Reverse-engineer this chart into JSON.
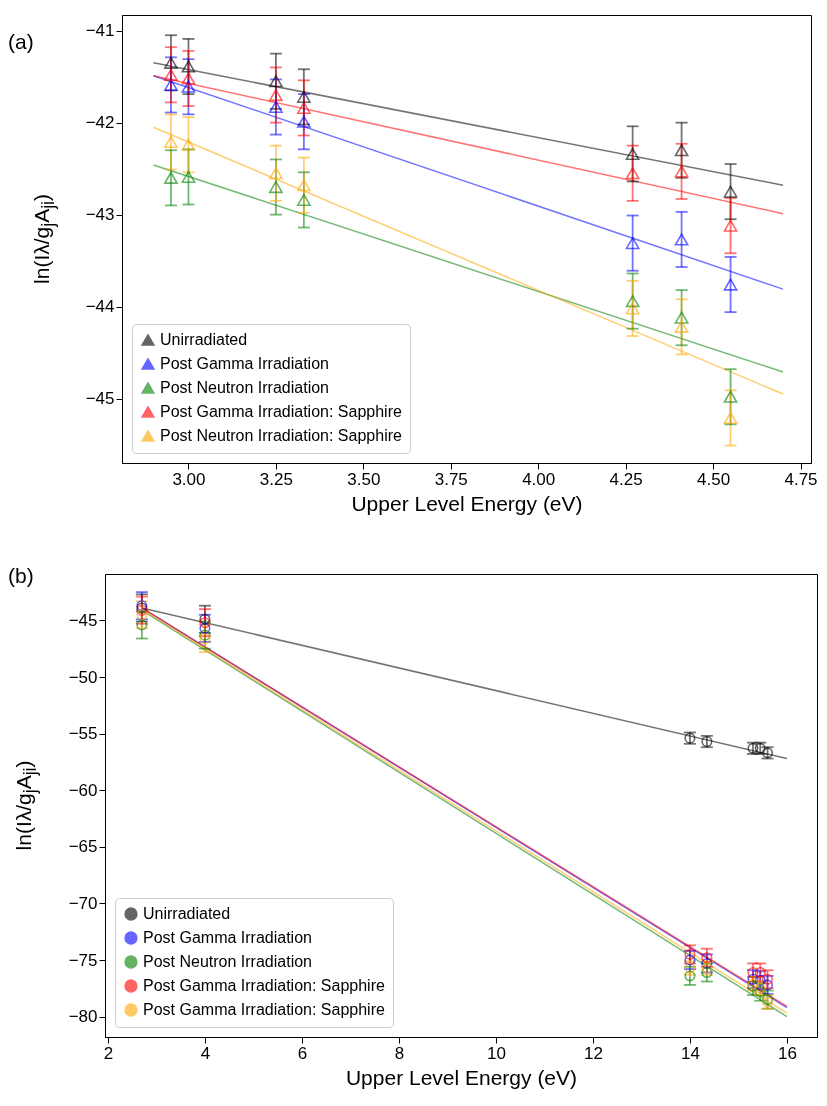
{
  "chart_data": [
    {
      "type": "scatter",
      "title": "(a)",
      "xlabel": "Upper Level Energy (eV)",
      "ylabel": "ln(Iλ/g$_{j}$A$_{ji}$)",
      "marker": "triangle",
      "legend": "bottom left",
      "x": [
        2.95,
        3.0,
        3.25,
        3.33,
        4.27,
        4.41,
        4.55
      ],
      "xlim": [
        2.81,
        4.78
      ],
      "xticks": [
        {
          "value": 3,
          "label": "3.00"
        },
        3.25,
        {
          "value": 3.5,
          "label": "3.50"
        },
        3.75,
        {
          "value": 4,
          "label": "4.00"
        },
        4.25,
        {
          "value": 4.5,
          "label": "4.50"
        },
        4.75
      ],
      "ylim": [
        -45.7,
        -40.83
      ],
      "yticks": [
        -45,
        -44,
        -43,
        -42,
        -41
      ],
      "series": [
        {
          "name": "Unirradiated",
          "color": "#000000",
          "values": [
            -41.35,
            -41.39,
            -41.55,
            -41.72,
            -42.34,
            -42.3,
            -42.75
          ],
          "errors": [
            0.3,
            0.3,
            0.3,
            0.3,
            0.3,
            0.3,
            0.3
          ]
        },
        {
          "name": "Post Gamma Irradiation",
          "color": "#0000ff",
          "values": [
            -41.59,
            -41.61,
            -41.83,
            -41.99,
            -43.31,
            -43.27,
            -43.76
          ],
          "errors": [
            0.3,
            0.3,
            0.3,
            0.3,
            0.3,
            0.3,
            0.3
          ]
        },
        {
          "name": "Post Neutron Irradiation",
          "color": "#008000",
          "values": [
            -42.6,
            -42.59,
            -42.7,
            -42.84,
            -43.94,
            -44.12,
            -44.98
          ],
          "errors": [
            0.3,
            0.3,
            0.3,
            0.3,
            0.3,
            0.3,
            0.3
          ]
        },
        {
          "name": "Post Gamma Irradiation: Sapphire",
          "color": "#ff0000",
          "values": [
            -41.48,
            -41.52,
            -41.7,
            -41.84,
            -42.55,
            -42.53,
            -43.12
          ],
          "errors": [
            0.3,
            0.3,
            0.3,
            0.3,
            0.3,
            0.3,
            0.3
          ]
        },
        {
          "name": "Post Neutron Irradiation: Sapphire",
          "color": "#ffa500",
          "values": [
            -42.21,
            -42.24,
            -42.55,
            -42.68,
            -44.02,
            -44.22,
            -45.21
          ],
          "errors": [
            0.3,
            0.3,
            0.3,
            0.3,
            0.3,
            0.3,
            0.3
          ]
        },
        {
          "type": "line",
          "marker": "none",
          "color": "#000000",
          "x": [
            2.9,
            4.7
          ],
          "values": [
            -41.35,
            -42.68
          ]
        },
        {
          "type": "line",
          "marker": "none",
          "color": "#0000ff",
          "x": [
            2.9,
            4.7
          ],
          "values": [
            -41.49,
            -43.81
          ]
        },
        {
          "type": "line",
          "marker": "none",
          "color": "#008000",
          "x": [
            2.9,
            4.7
          ],
          "values": [
            -42.46,
            -44.71
          ]
        },
        {
          "type": "line",
          "marker": "none",
          "color": "#ff0000",
          "x": [
            2.9,
            4.7
          ],
          "values": [
            -41.49,
            -42.99
          ]
        },
        {
          "type": "line",
          "marker": "none",
          "color": "#ffa500",
          "x": [
            2.9,
            4.7
          ],
          "values": [
            -42.05,
            -44.95
          ]
        }
      ]
    },
    {
      "type": "scatter",
      "title": "(b)",
      "xlabel": "Upper Level Energy (eV)",
      "ylabel": "ln(Iλ/g$_{j}$A$_{ji}$)",
      "marker": "circle",
      "legend": "bottom left",
      "x": [
        2.7,
        4.0,
        14.0,
        14.35,
        15.3,
        15.45,
        15.6
      ],
      "xlim": [
        1.94,
        16.62
      ],
      "xticks": [
        2,
        4,
        6,
        8,
        10,
        12,
        14,
        16
      ],
      "ylim": [
        -81.8,
        -40.9
      ],
      "yticks": [
        -80,
        -75,
        -70,
        -65,
        -60,
        -55,
        -50,
        -45
      ],
      "series": [
        {
          "name": "Unirradiated",
          "color": "#000000",
          "values": [
            -43.9,
            -44.9,
            -55.4,
            -55.7,
            -56.3,
            -56.3,
            -56.7
          ],
          "errors": [
            1.2,
            1.2,
            0.5,
            0.5,
            0.5,
            0.5,
            0.5
          ]
        },
        {
          "name": "Post Gamma Irradiation",
          "color": "#0000ff",
          "values": [
            -43.7,
            -45.7,
            -75.0,
            -75.3,
            -76.7,
            -76.8,
            -77.2
          ],
          "errors": [
            1.2,
            1.2,
            0.8,
            0.8,
            0.8,
            0.8,
            0.8
          ]
        },
        {
          "name": "Post Neutron Irradiation",
          "color": "#008000",
          "values": [
            -45.4,
            -46.3,
            -76.4,
            -76.1,
            -77.3,
            -77.8,
            -78.5
          ],
          "errors": [
            1.2,
            1.2,
            0.8,
            0.8,
            0.8,
            0.8,
            0.8
          ]
        },
        {
          "name": "Post Gamma Irradiation: Sapphire",
          "color": "#ff0000",
          "values": [
            -44.1,
            -45.2,
            -74.5,
            -74.8,
            -76.1,
            -76.1,
            -76.7
          ],
          "errors": [
            1.2,
            1.2,
            0.8,
            0.8,
            0.8,
            0.8,
            0.8
          ]
        },
        {
          "name": "Post Gamma Irradiation: Sapphire",
          "color": "#ffa500",
          "values": [
            -44.5,
            -46.6,
            -75.7,
            -75.7,
            -77.1,
            -77.5,
            -78.7
          ],
          "errors": [
            1.2,
            1.2,
            0.6,
            0.6,
            0.6,
            0.6,
            0.6
          ]
        },
        {
          "type": "line",
          "marker": "none",
          "color": "#000000",
          "x": [
            2.7,
            16.0
          ],
          "values": [
            -43.9,
            -57.2
          ]
        },
        {
          "type": "line",
          "marker": "none",
          "color": "#0000ff",
          "x": [
            2.7,
            16.0
          ],
          "values": [
            -43.9,
            -79.2
          ]
        },
        {
          "type": "line",
          "marker": "none",
          "color": "#008000",
          "x": [
            2.7,
            16.0
          ],
          "values": [
            -44.1,
            -80.0
          ]
        },
        {
          "type": "line",
          "marker": "none",
          "color": "#ff0000",
          "x": [
            2.7,
            16.0
          ],
          "values": [
            -43.9,
            -79.1
          ]
        },
        {
          "type": "line",
          "marker": "none",
          "color": "#ffa500",
          "x": [
            2.7,
            16.0
          ],
          "values": [
            -44.0,
            -79.7
          ]
        }
      ]
    }
  ]
}
